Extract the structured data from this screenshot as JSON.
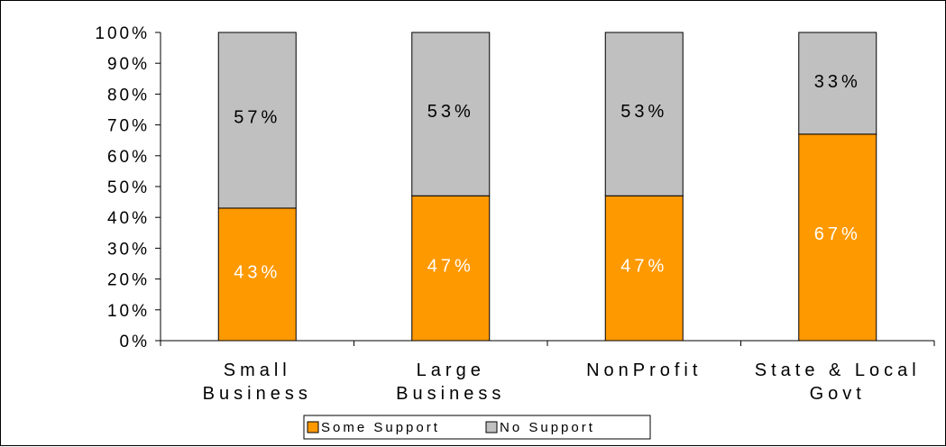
{
  "chart_data": {
    "type": "bar",
    "stacked": true,
    "categories": [
      [
        "Small",
        "Business"
      ],
      [
        "Large",
        "Business"
      ],
      [
        "NonProfit"
      ],
      [
        "State & Local",
        "Govt"
      ]
    ],
    "series": [
      {
        "name": "Some Support",
        "values": [
          43,
          47,
          47,
          67
        ],
        "labels": [
          "43%",
          "47%",
          "47%",
          "67%"
        ],
        "color": "#FF9900",
        "label_color": "#FFFFFF"
      },
      {
        "name": "No Support",
        "values": [
          57,
          53,
          53,
          33
        ],
        "labels": [
          "57%",
          "53%",
          "53%",
          "33%"
        ],
        "color": "#C0C0C0",
        "label_color": "#000000"
      }
    ],
    "y_ticks": [
      "0%",
      "10%",
      "20%",
      "30%",
      "40%",
      "50%",
      "60%",
      "70%",
      "80%",
      "90%",
      "100%"
    ],
    "ylim": [
      0,
      100
    ],
    "grid": false,
    "legend": "bottom",
    "title": "",
    "xlabel": "",
    "ylabel": ""
  }
}
